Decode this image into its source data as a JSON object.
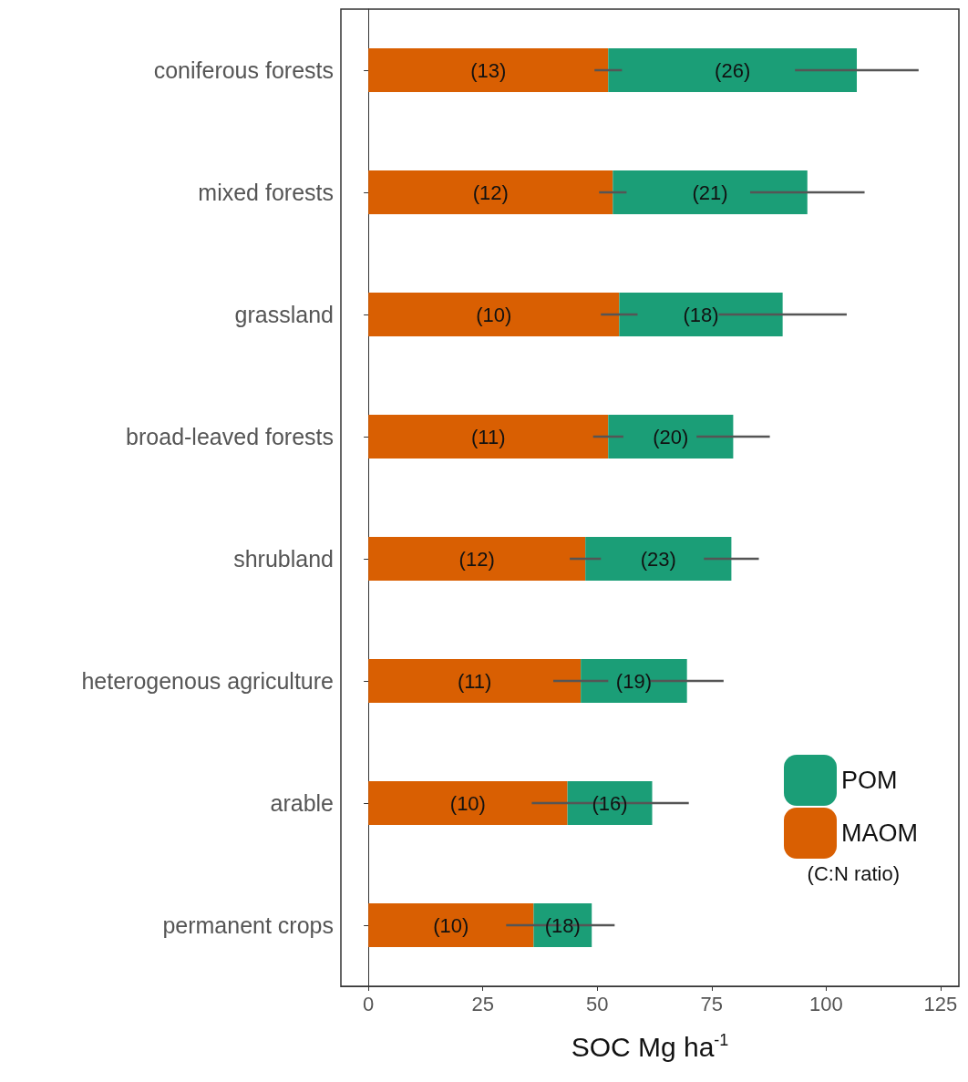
{
  "chart_data": {
    "type": "bar",
    "orientation": "horizontal",
    "stacked": true,
    "categories": [
      "coniferous forests",
      "mixed forests",
      "grassland",
      "broad-leaved forests",
      "shrubland",
      "heterogenous agriculture",
      "arable",
      "permanent crops"
    ],
    "series": [
      {
        "name": "MAOM",
        "color": "#d95f02",
        "values": [
          52.4,
          53.4,
          54.8,
          52.4,
          47.4,
          46.4,
          43.5,
          36.1
        ],
        "errors": [
          3,
          3,
          4,
          3.3,
          3.4,
          6,
          7.8,
          6
        ]
      },
      {
        "name": "POM",
        "color": "#1b9e77",
        "values": [
          54.3,
          42.5,
          35.7,
          27.3,
          31.9,
          23.2,
          18.5,
          12.7
        ],
        "errors": [
          13.5,
          12.5,
          14,
          8,
          6,
          8,
          8,
          5
        ]
      }
    ],
    "xlabel": "SOC Mg ha$^{-1}$",
    "xlim": [
      -6,
      129
    ],
    "xticks": [
      0,
      25,
      50,
      75,
      100,
      125
    ],
    "legend": "bottom right",
    "annotations": [
      "(C:N ratio)",
      "(13)",
      "(26)",
      "(12)",
      "(21)",
      "(10)",
      "(18)",
      "(11)",
      "(20)",
      "(12)",
      "(23)",
      "(11)",
      "(19)",
      "(10)",
      "(16)",
      "(10)",
      "(18)"
    ]
  }
}
